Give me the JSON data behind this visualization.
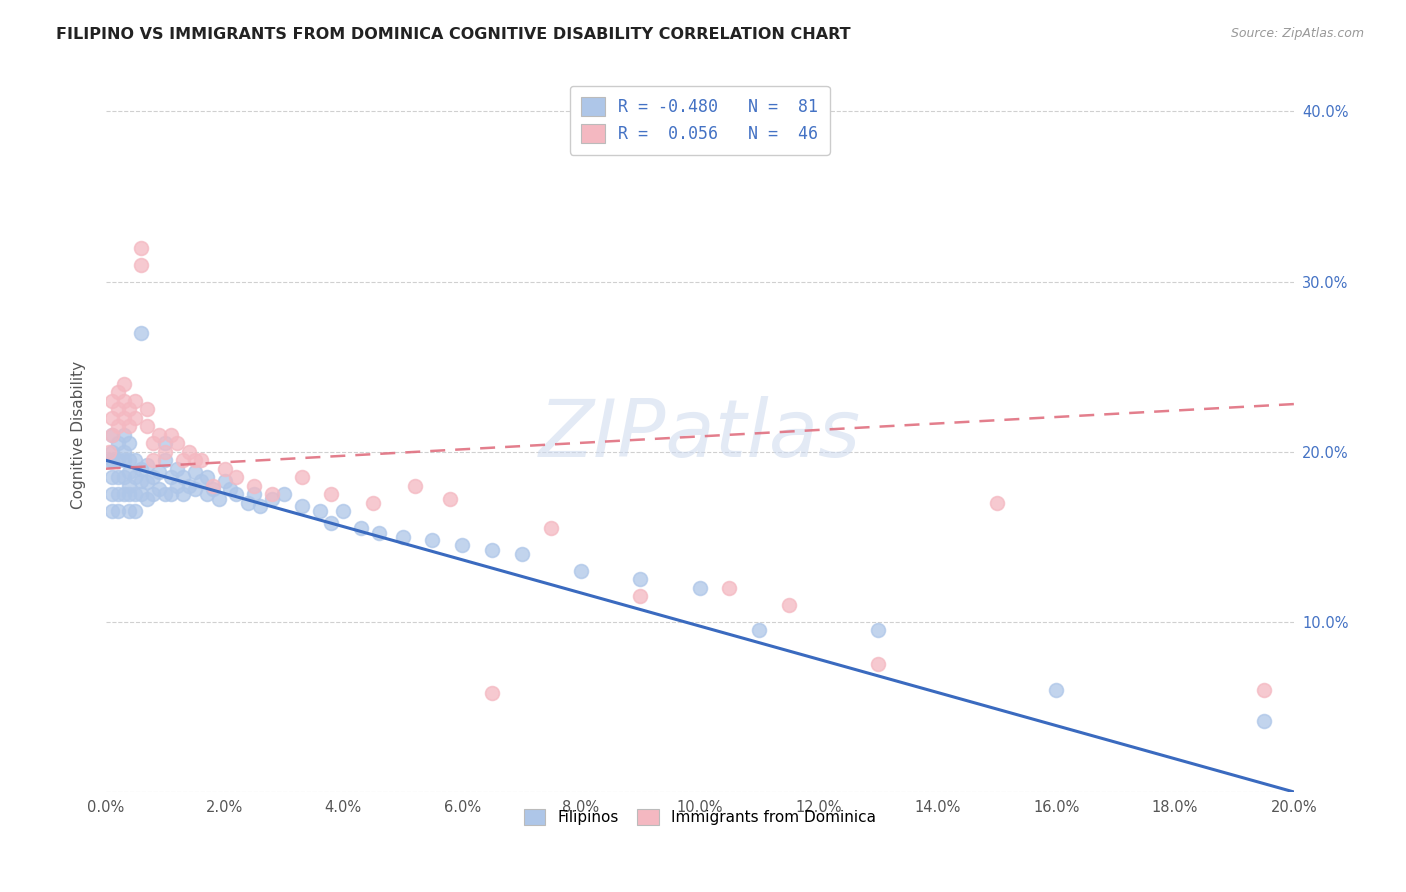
{
  "title": "FILIPINO VS IMMIGRANTS FROM DOMINICA COGNITIVE DISABILITY CORRELATION CHART",
  "source": "Source: ZipAtlas.com",
  "ylabel": "Cognitive Disability",
  "xlim": [
    0.0,
    0.2
  ],
  "ylim": [
    0.0,
    0.42
  ],
  "ytick_positions": [
    0.0,
    0.1,
    0.2,
    0.3,
    0.4
  ],
  "ytick_labels_right": [
    "",
    "10.0%",
    "20.0%",
    "30.0%",
    "40.0%"
  ],
  "grid_color": "#d0d0d0",
  "background_color": "#ffffff",
  "filipino_color": "#aec6e8",
  "dominica_color": "#f4b8c1",
  "filipino_line_color": "#3a6abf",
  "dominica_line_color": "#e07080",
  "r_filipino": -0.48,
  "n_filipino": 81,
  "r_dominica": 0.056,
  "n_dominica": 46,
  "blue_line_x": [
    0.0,
    0.2
  ],
  "blue_line_y": [
    0.195,
    0.0
  ],
  "pink_line_x": [
    0.0,
    0.2
  ],
  "pink_line_y": [
    0.19,
    0.228
  ],
  "filipinos_x": [
    0.0005,
    0.001,
    0.001,
    0.001,
    0.001,
    0.001,
    0.001,
    0.002,
    0.002,
    0.002,
    0.002,
    0.002,
    0.003,
    0.003,
    0.003,
    0.003,
    0.003,
    0.004,
    0.004,
    0.004,
    0.004,
    0.004,
    0.004,
    0.005,
    0.005,
    0.005,
    0.005,
    0.006,
    0.006,
    0.006,
    0.006,
    0.007,
    0.007,
    0.007,
    0.008,
    0.008,
    0.009,
    0.009,
    0.01,
    0.01,
    0.01,
    0.011,
    0.011,
    0.012,
    0.012,
    0.013,
    0.013,
    0.014,
    0.015,
    0.015,
    0.016,
    0.017,
    0.017,
    0.018,
    0.019,
    0.02,
    0.021,
    0.022,
    0.024,
    0.025,
    0.026,
    0.028,
    0.03,
    0.033,
    0.036,
    0.038,
    0.04,
    0.043,
    0.046,
    0.05,
    0.055,
    0.06,
    0.065,
    0.07,
    0.08,
    0.09,
    0.1,
    0.11,
    0.13,
    0.16,
    0.195
  ],
  "filipinos_y": [
    0.195,
    0.2,
    0.21,
    0.195,
    0.185,
    0.175,
    0.165,
    0.205,
    0.195,
    0.185,
    0.175,
    0.165,
    0.2,
    0.21,
    0.195,
    0.185,
    0.175,
    0.205,
    0.195,
    0.188,
    0.18,
    0.175,
    0.165,
    0.195,
    0.185,
    0.175,
    0.165,
    0.27,
    0.19,
    0.183,
    0.175,
    0.192,
    0.182,
    0.172,
    0.185,
    0.175,
    0.188,
    0.178,
    0.205,
    0.195,
    0.175,
    0.185,
    0.175,
    0.19,
    0.18,
    0.185,
    0.175,
    0.18,
    0.188,
    0.178,
    0.183,
    0.185,
    0.175,
    0.178,
    0.172,
    0.183,
    0.178,
    0.175,
    0.17,
    0.175,
    0.168,
    0.172,
    0.175,
    0.168,
    0.165,
    0.158,
    0.165,
    0.155,
    0.152,
    0.15,
    0.148,
    0.145,
    0.142,
    0.14,
    0.13,
    0.125,
    0.12,
    0.095,
    0.095,
    0.06,
    0.042
  ],
  "dominica_x": [
    0.0005,
    0.001,
    0.001,
    0.001,
    0.002,
    0.002,
    0.002,
    0.003,
    0.003,
    0.003,
    0.004,
    0.004,
    0.005,
    0.005,
    0.006,
    0.006,
    0.007,
    0.007,
    0.008,
    0.008,
    0.009,
    0.01,
    0.011,
    0.012,
    0.013,
    0.014,
    0.015,
    0.016,
    0.018,
    0.02,
    0.022,
    0.025,
    0.028,
    0.033,
    0.038,
    0.045,
    0.052,
    0.058,
    0.065,
    0.075,
    0.09,
    0.105,
    0.115,
    0.13,
    0.15,
    0.195
  ],
  "dominica_y": [
    0.2,
    0.21,
    0.22,
    0.23,
    0.215,
    0.225,
    0.235,
    0.22,
    0.23,
    0.24,
    0.225,
    0.215,
    0.23,
    0.22,
    0.32,
    0.31,
    0.225,
    0.215,
    0.205,
    0.195,
    0.21,
    0.2,
    0.21,
    0.205,
    0.195,
    0.2,
    0.195,
    0.195,
    0.18,
    0.19,
    0.185,
    0.18,
    0.175,
    0.185,
    0.175,
    0.17,
    0.18,
    0.172,
    0.058,
    0.155,
    0.115,
    0.12,
    0.11,
    0.075,
    0.17,
    0.06
  ],
  "watermark_text": "ZIPatlas",
  "legend_top_label1": "R = -0.480   N =  81",
  "legend_top_label2": "R =  0.056   N =  46",
  "legend_bottom_label1": "Filipinos",
  "legend_bottom_label2": "Immigrants from Dominica"
}
